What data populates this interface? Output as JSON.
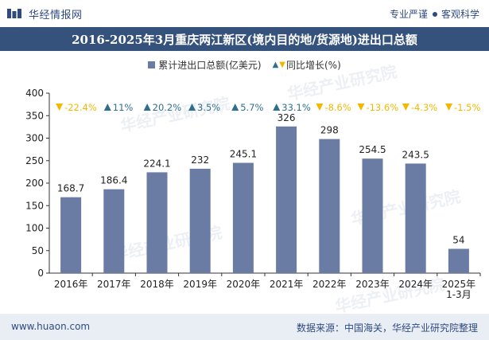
{
  "header": {
    "brand": "华经情报网",
    "tag1": "专业严谨",
    "tag2": "客观科学",
    "title": "2016-2025年3月重庆两江新区(境内目的地/货源地)进出口总额"
  },
  "legend": {
    "bar_label": "累计进出口总额(亿美元)",
    "yoy_label": "同比增长(%)"
  },
  "watermark": {
    "cn": "华经产业研究院",
    "url": "www.huaon.com"
  },
  "footer": {
    "url": "www.huaon.com",
    "source": "数据来源：中国海关，华经产业研究院整理"
  },
  "colors": {
    "bar": "#6a7ba4",
    "up": "#2e6f8e",
    "down": "#f2b800",
    "title_bg": "#34527c",
    "footer_bg": "#e9eef5"
  },
  "chart_data": {
    "type": "bar",
    "categories": [
      "2016年",
      "2017年",
      "2018年",
      "2019年",
      "2020年",
      "2021年",
      "2022年",
      "2023年",
      "2024年",
      "2025年\n1-3月"
    ],
    "series": [
      {
        "name": "累计进出口总额(亿美元)",
        "values": [
          168.7,
          186.4,
          224.1,
          232,
          245.1,
          326,
          298,
          254.5,
          243.5,
          54
        ]
      }
    ],
    "value_labels": [
      "168.7",
      "186.4",
      "224.1",
      "232",
      "245.1",
      "326",
      "298",
      "254.5",
      "243.5",
      "54"
    ],
    "yoy": [
      {
        "dir": "down",
        "label": "-22.4%"
      },
      {
        "dir": "up",
        "label": "11%"
      },
      {
        "dir": "up",
        "label": "20.2%"
      },
      {
        "dir": "up",
        "label": "3.5%"
      },
      {
        "dir": "up",
        "label": "5.7%"
      },
      {
        "dir": "up",
        "label": "33.1%"
      },
      {
        "dir": "down",
        "label": "-8.6%"
      },
      {
        "dir": "down",
        "label": "-13.6%"
      },
      {
        "dir": "down",
        "label": "-4.3%"
      },
      {
        "dir": "down",
        "label": "-1.5%"
      }
    ],
    "ylim": [
      0,
      400
    ],
    "yticks": [
      0,
      50,
      100,
      150,
      200,
      250,
      300,
      350,
      400
    ],
    "grid": false,
    "legend_position": "top"
  }
}
